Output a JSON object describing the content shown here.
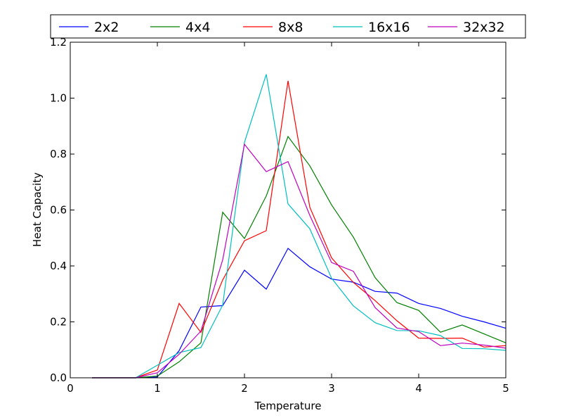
{
  "chart_data": {
    "type": "line",
    "title": "",
    "xlabel": "Temperature",
    "ylabel": "Heat Capacity",
    "xlim": [
      0,
      5
    ],
    "ylim": [
      0,
      1.2
    ],
    "xticks": [
      0,
      1,
      2,
      3,
      4,
      5
    ],
    "yticks": [
      0.0,
      0.2,
      0.4,
      0.6,
      0.8,
      1.0,
      1.2
    ],
    "xtick_labels": [
      "0",
      "1",
      "2",
      "3",
      "4",
      "5"
    ],
    "ytick_labels": [
      "0.0",
      "0.2",
      "0.4",
      "0.6",
      "0.8",
      "1.0",
      "1.2"
    ],
    "grid": false,
    "legend_position": "top, outside plot area, single row",
    "x": [
      0.25,
      0.5,
      0.75,
      1.0,
      1.25,
      1.5,
      1.75,
      2.0,
      2.25,
      2.5,
      2.75,
      3.0,
      3.25,
      3.5,
      3.75,
      4.0,
      4.25,
      4.5,
      4.75,
      5.0
    ],
    "series": [
      {
        "name": "2x2",
        "color": "#0000ff",
        "values": [
          0.0,
          0.0,
          0.0,
          0.003,
          0.097,
          0.253,
          0.258,
          0.385,
          0.317,
          0.463,
          0.397,
          0.353,
          0.342,
          0.309,
          0.303,
          0.266,
          0.248,
          0.22,
          0.2,
          0.177
        ]
      },
      {
        "name": "4x4",
        "color": "#008000",
        "values": [
          0.0,
          0.0,
          0.0,
          0.006,
          0.057,
          0.125,
          0.592,
          0.498,
          0.65,
          0.863,
          0.758,
          0.618,
          0.503,
          0.358,
          0.269,
          0.241,
          0.163,
          0.189,
          0.157,
          0.125
        ]
      },
      {
        "name": "8x8",
        "color": "#ff0000",
        "values": [
          0.0,
          0.0,
          0.0,
          0.028,
          0.266,
          0.162,
          0.35,
          0.49,
          0.526,
          1.062,
          0.61,
          0.429,
          0.341,
          0.276,
          0.204,
          0.142,
          0.141,
          0.142,
          0.11,
          0.115
        ]
      },
      {
        "name": "16x16",
        "color": "#00bfbf",
        "values": [
          0.0,
          0.0,
          0.0,
          0.045,
          0.09,
          0.108,
          0.26,
          0.842,
          1.085,
          0.622,
          0.533,
          0.356,
          0.257,
          0.197,
          0.169,
          0.168,
          0.151,
          0.105,
          0.104,
          0.098
        ]
      },
      {
        "name": "32x32",
        "color": "#bf00bf",
        "values": [
          0.0,
          0.0,
          0.0,
          0.018,
          0.084,
          0.167,
          0.422,
          0.835,
          0.737,
          0.773,
          0.581,
          0.412,
          0.381,
          0.251,
          0.178,
          0.165,
          0.115,
          0.124,
          0.117,
          0.106
        ]
      }
    ]
  }
}
